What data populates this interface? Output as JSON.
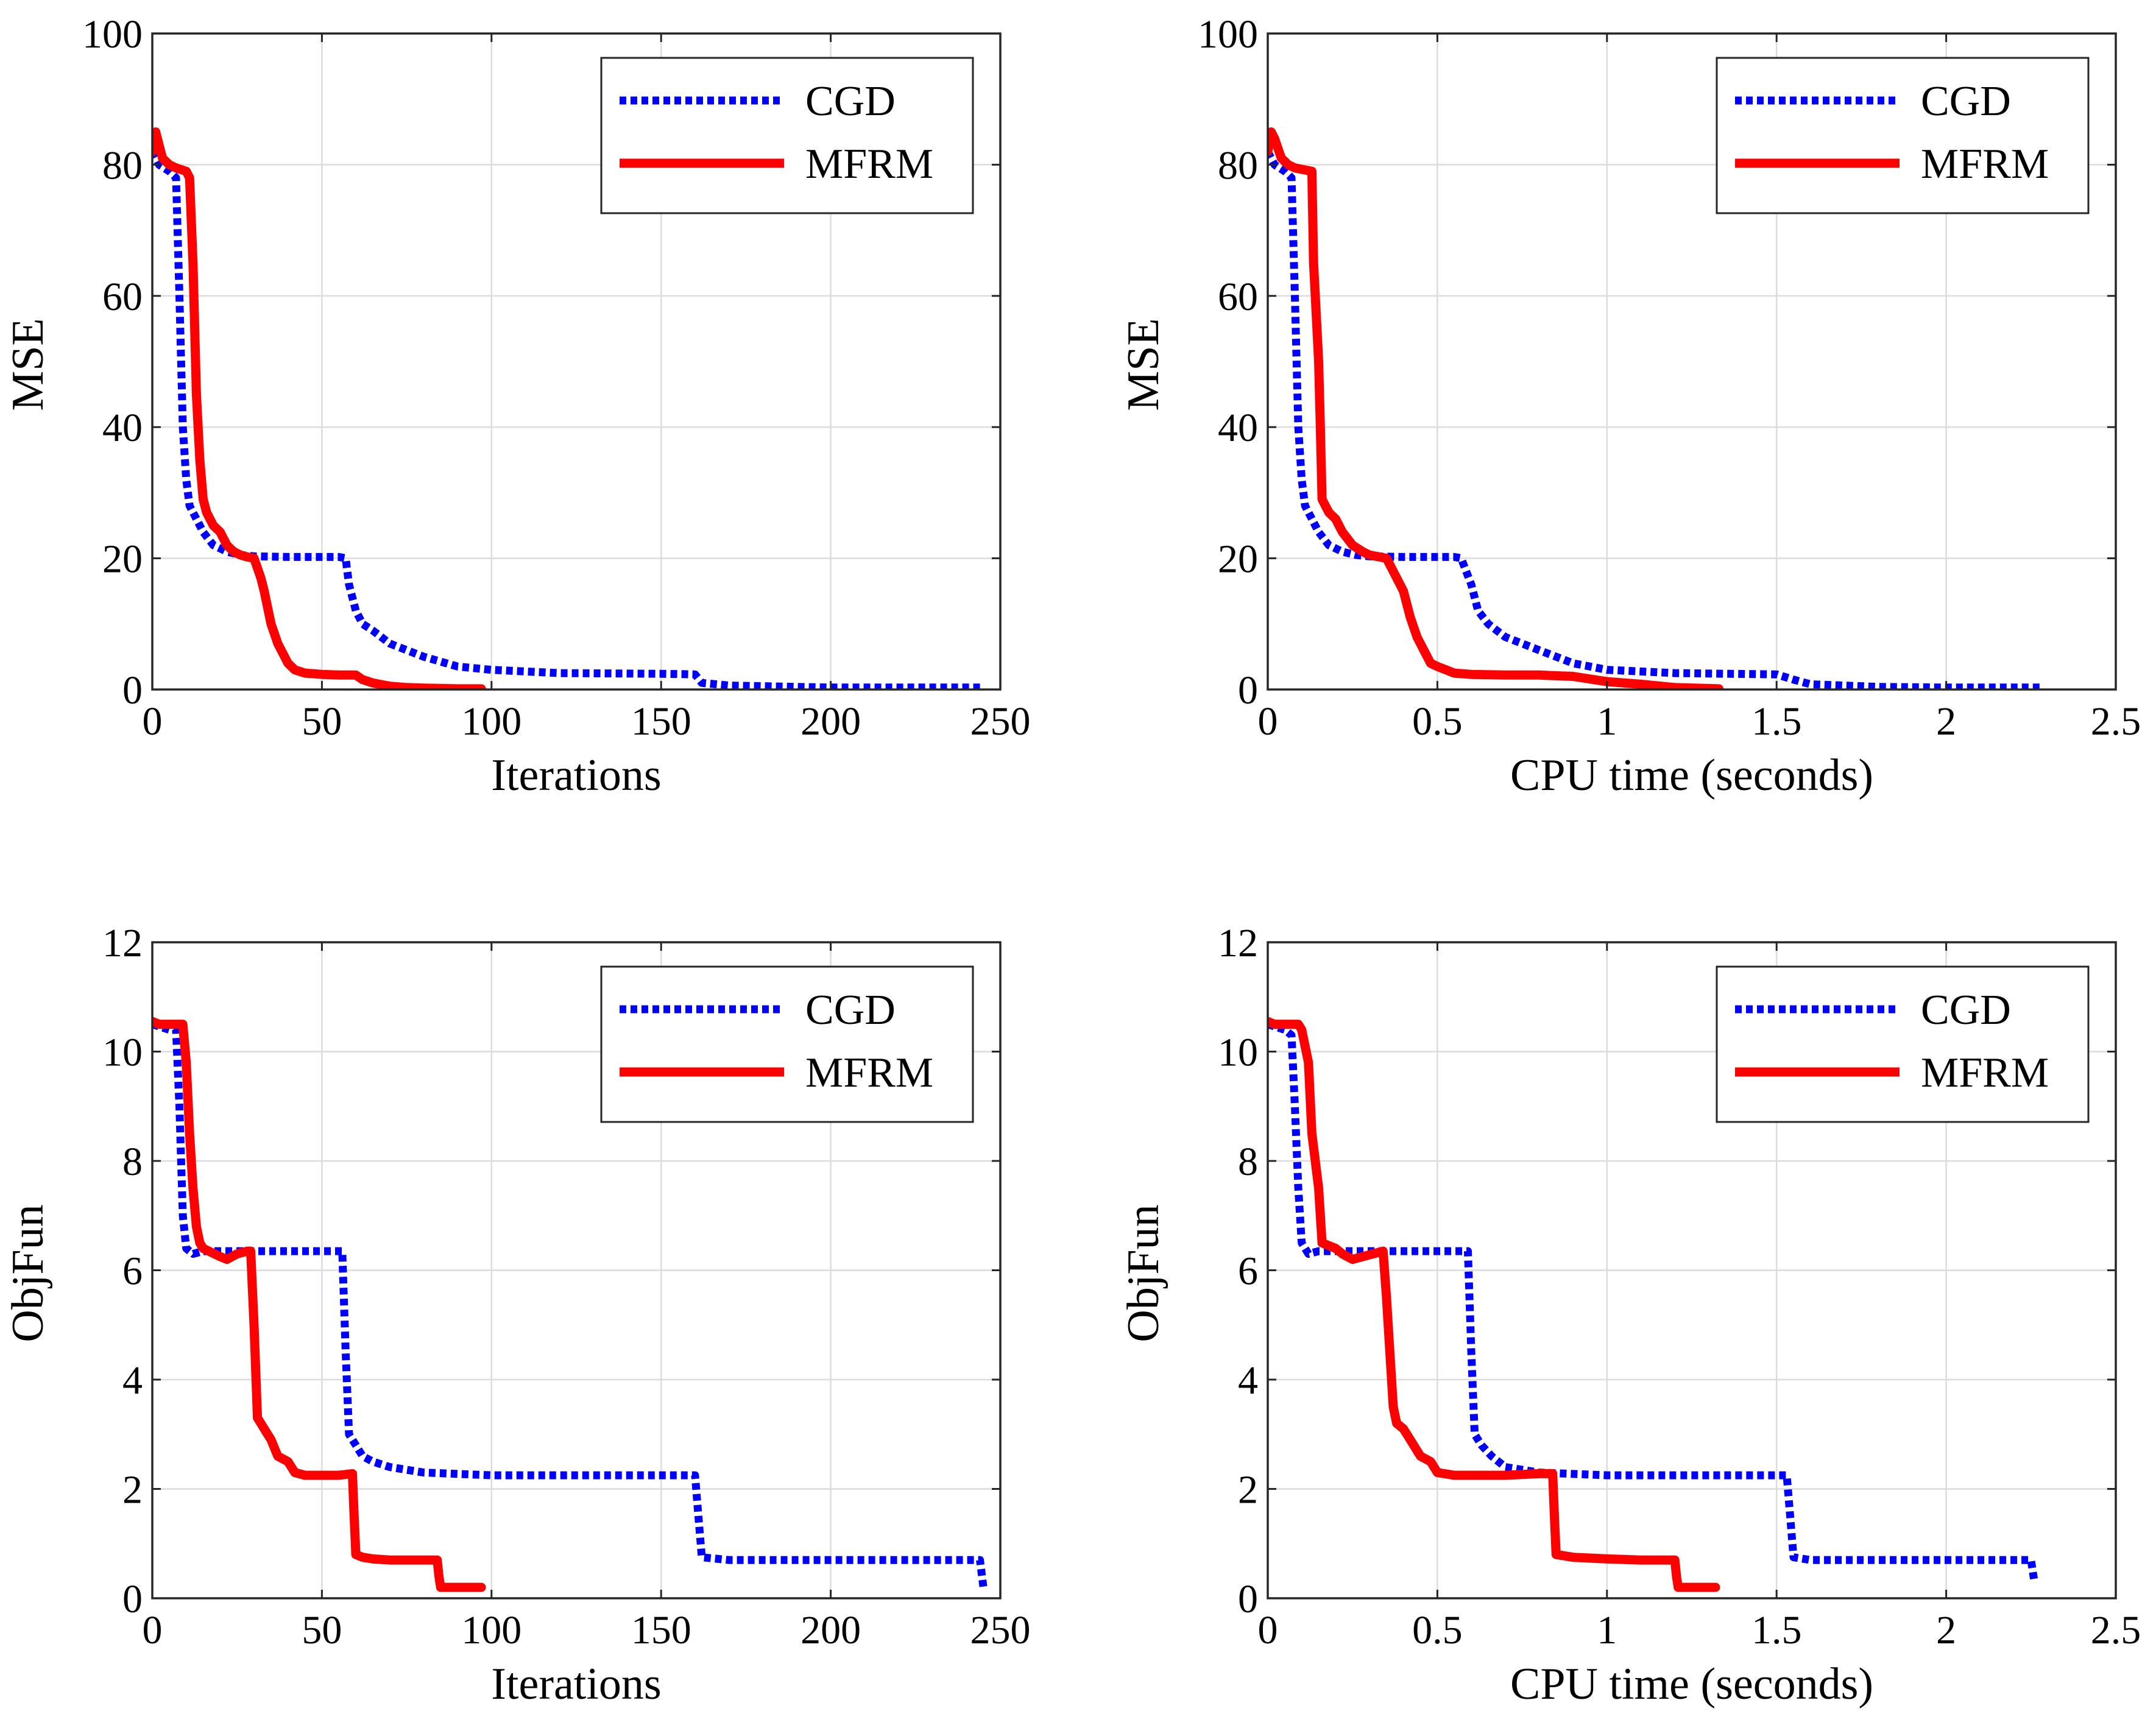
{
  "chart_data": [
    {
      "type": "line",
      "xlabel": "Iterations",
      "ylabel": "MSE",
      "xlim": [
        0,
        250
      ],
      "ylim": [
        0,
        100
      ],
      "xticks": [
        0,
        50,
        100,
        150,
        200,
        250
      ],
      "yticks": [
        0,
        20,
        40,
        60,
        80,
        100
      ],
      "xtick_labels": [
        "0",
        "50",
        "100",
        "150",
        "200",
        "250"
      ],
      "ytick_labels": [
        "0",
        "20",
        "40",
        "60",
        "80",
        "100"
      ],
      "grid": true,
      "legend": "top-right",
      "series": [
        {
          "name": "CGD",
          "color": "#0000ff",
          "style": "dotted",
          "x": [
            0,
            2,
            5,
            7,
            8,
            9,
            10,
            11,
            13,
            15,
            18,
            22,
            26,
            30,
            40,
            50,
            55,
            57,
            58,
            60,
            62,
            65,
            70,
            80,
            90,
            100,
            120,
            150,
            160,
            162,
            170,
            190,
            200,
            220,
            245
          ],
          "y": [
            82,
            80,
            79,
            78,
            60,
            40,
            32,
            28,
            26,
            24,
            22,
            21,
            20.5,
            20.3,
            20.2,
            20.2,
            20.2,
            20,
            16,
            12,
            10,
            9,
            7,
            5,
            3.5,
            3,
            2.5,
            2.4,
            2.3,
            1,
            0.6,
            0.4,
            0.3,
            0.3,
            0.3
          ]
        },
        {
          "name": "MFRM",
          "color": "#ff0000",
          "style": "solid",
          "x": [
            0,
            1,
            2,
            3,
            5,
            7,
            10,
            11,
            12,
            12.5,
            13,
            14,
            15,
            16,
            18,
            20,
            22,
            24,
            26,
            28,
            30,
            32,
            33,
            35,
            37,
            38,
            40,
            42,
            45,
            50,
            55,
            60,
            62,
            65,
            70,
            75,
            80,
            90,
            97
          ],
          "y": [
            82,
            85,
            83,
            81,
            80,
            79.5,
            79,
            78,
            65,
            55,
            45,
            35,
            29,
            27,
            25,
            24,
            22,
            21,
            20.5,
            20.2,
            20,
            17,
            15,
            10,
            7,
            6,
            4,
            3,
            2.5,
            2.3,
            2.2,
            2.2,
            1.5,
            1,
            0.5,
            0.3,
            0.2,
            0.1,
            0.1
          ]
        }
      ]
    },
    {
      "type": "line",
      "xlabel": "CPU time (seconds)",
      "ylabel": "MSE",
      "xlim": [
        0,
        2.5
      ],
      "ylim": [
        0,
        100
      ],
      "xticks": [
        0,
        0.5,
        1,
        1.5,
        2,
        2.5
      ],
      "yticks": [
        0,
        20,
        40,
        60,
        80,
        100
      ],
      "xtick_labels": [
        "0",
        "0.5",
        "1",
        "1.5",
        "2",
        "2.5"
      ],
      "ytick_labels": [
        "0",
        "20",
        "40",
        "60",
        "80",
        "100"
      ],
      "grid": true,
      "legend": "top-right",
      "series": [
        {
          "name": "CGD",
          "color": "#0000ff",
          "style": "dotted",
          "x": [
            0,
            0.02,
            0.05,
            0.07,
            0.08,
            0.09,
            0.1,
            0.11,
            0.13,
            0.15,
            0.18,
            0.22,
            0.26,
            0.3,
            0.4,
            0.5,
            0.55,
            0.57,
            0.6,
            0.62,
            0.65,
            0.7,
            0.8,
            0.9,
            1.0,
            1.2,
            1.5,
            1.55,
            1.6,
            1.8,
            2.0,
            2.2,
            2.28
          ],
          "y": [
            82,
            80,
            79,
            78,
            60,
            40,
            32,
            28,
            26,
            24,
            22,
            21,
            20.5,
            20.3,
            20.2,
            20.2,
            20.2,
            20,
            16,
            12,
            10,
            8,
            6,
            4,
            3,
            2.5,
            2.3,
            1.5,
            0.8,
            0.4,
            0.3,
            0.3,
            0.3
          ]
        },
        {
          "name": "MFRM",
          "color": "#ff0000",
          "style": "solid",
          "x": [
            0,
            0.01,
            0.02,
            0.04,
            0.06,
            0.08,
            0.13,
            0.135,
            0.14,
            0.15,
            0.155,
            0.16,
            0.18,
            0.2,
            0.22,
            0.25,
            0.28,
            0.3,
            0.35,
            0.38,
            0.4,
            0.42,
            0.44,
            0.46,
            0.48,
            0.5,
            0.55,
            0.6,
            0.7,
            0.8,
            0.9,
            1.0,
            1.1,
            1.2,
            1.33
          ],
          "y": [
            82,
            85,
            84,
            81,
            80,
            79.5,
            79,
            65,
            60,
            50,
            40,
            29,
            27,
            26,
            24,
            22,
            21,
            20.5,
            20,
            17,
            15,
            11,
            8,
            6,
            4,
            3.5,
            2.5,
            2.3,
            2.2,
            2.2,
            2,
            1.2,
            0.8,
            0.3,
            0.1
          ]
        }
      ]
    },
    {
      "type": "line",
      "xlabel": "Iterations",
      "ylabel": "ObjFun",
      "xlim": [
        0,
        250
      ],
      "ylim": [
        0,
        12
      ],
      "xticks": [
        0,
        50,
        100,
        150,
        200,
        250
      ],
      "yticks": [
        0,
        2,
        4,
        6,
        8,
        10,
        12
      ],
      "xtick_labels": [
        "0",
        "50",
        "100",
        "150",
        "200",
        "250"
      ],
      "ytick_labels": [
        "0",
        "2",
        "4",
        "6",
        "8",
        "10",
        "12"
      ],
      "grid": true,
      "legend": "top-right",
      "series": [
        {
          "name": "CGD",
          "color": "#0000ff",
          "style": "dotted",
          "x": [
            0,
            5,
            7,
            8,
            9,
            10,
            12,
            15,
            20,
            30,
            40,
            50,
            56,
            57,
            58,
            60,
            62,
            65,
            70,
            80,
            100,
            120,
            150,
            160,
            161,
            162,
            170,
            200,
            230,
            244,
            245
          ],
          "y": [
            10.5,
            10.4,
            10.4,
            9,
            7,
            6.4,
            6.3,
            6.35,
            6.35,
            6.35,
            6.35,
            6.35,
            6.35,
            4.5,
            3,
            2.8,
            2.6,
            2.5,
            2.4,
            2.3,
            2.25,
            2.25,
            2.25,
            2.25,
            1.5,
            0.75,
            0.7,
            0.7,
            0.7,
            0.7,
            0.2
          ]
        },
        {
          "name": "MFRM",
          "color": "#ff0000",
          "style": "solid",
          "x": [
            0,
            2,
            5,
            9,
            10,
            11,
            12,
            13,
            14,
            15,
            20,
            22,
            25,
            28,
            29,
            30,
            31,
            32,
            33,
            35,
            37,
            40,
            42,
            45,
            50,
            55,
            59,
            59.5,
            60,
            62,
            65,
            70,
            80,
            84,
            84.5,
            85,
            90,
            97
          ],
          "y": [
            10.55,
            10.5,
            10.5,
            10.5,
            9.8,
            8.5,
            7.5,
            6.8,
            6.5,
            6.4,
            6.25,
            6.2,
            6.3,
            6.35,
            6.35,
            5,
            3.3,
            3.2,
            3.1,
            2.9,
            2.6,
            2.5,
            2.3,
            2.25,
            2.25,
            2.25,
            2.28,
            1.5,
            0.8,
            0.75,
            0.72,
            0.7,
            0.7,
            0.7,
            0.4,
            0.2,
            0.2,
            0.2
          ]
        }
      ]
    },
    {
      "type": "line",
      "xlabel": "CPU time (seconds)",
      "ylabel": "ObjFun",
      "xlim": [
        0,
        2.5
      ],
      "ylim": [
        0,
        12
      ],
      "xticks": [
        0,
        0.5,
        1,
        1.5,
        2,
        2.5
      ],
      "yticks": [
        0,
        2,
        4,
        6,
        8,
        10,
        12
      ],
      "xtick_labels": [
        "0",
        "0.5",
        "1",
        "1.5",
        "2",
        "2.5"
      ],
      "ytick_labels": [
        "0",
        "2",
        "4",
        "6",
        "8",
        "10",
        "12"
      ],
      "grid": true,
      "legend": "top-right",
      "series": [
        {
          "name": "CGD",
          "color": "#0000ff",
          "style": "dotted",
          "x": [
            0,
            0.05,
            0.07,
            0.08,
            0.09,
            0.1,
            0.12,
            0.15,
            0.2,
            0.3,
            0.4,
            0.5,
            0.59,
            0.6,
            0.61,
            0.63,
            0.66,
            0.7,
            0.8,
            1.0,
            1.2,
            1.5,
            1.53,
            1.54,
            1.55,
            1.6,
            1.8,
            2.0,
            2.2,
            2.25,
            2.26
          ],
          "y": [
            10.5,
            10.4,
            10.3,
            9,
            7.5,
            6.5,
            6.3,
            6.35,
            6.35,
            6.35,
            6.35,
            6.35,
            6.35,
            4.5,
            3,
            2.8,
            2.6,
            2.4,
            2.3,
            2.25,
            2.25,
            2.25,
            2.25,
            1.5,
            0.75,
            0.7,
            0.7,
            0.7,
            0.7,
            0.7,
            0.3
          ]
        },
        {
          "name": "MFRM",
          "color": "#ff0000",
          "style": "solid",
          "x": [
            0,
            0.02,
            0.05,
            0.09,
            0.1,
            0.12,
            0.13,
            0.14,
            0.15,
            0.16,
            0.2,
            0.22,
            0.25,
            0.28,
            0.34,
            0.35,
            0.36,
            0.37,
            0.38,
            0.4,
            0.42,
            0.45,
            0.48,
            0.5,
            0.55,
            0.6,
            0.7,
            0.8,
            0.84,
            0.845,
            0.85,
            0.9,
            1.0,
            1.1,
            1.2,
            1.205,
            1.21,
            1.25,
            1.32
          ],
          "y": [
            10.55,
            10.5,
            10.5,
            10.5,
            10.4,
            9.8,
            8.5,
            8,
            7.5,
            6.5,
            6.4,
            6.3,
            6.2,
            6.25,
            6.35,
            5.5,
            4.5,
            3.5,
            3.2,
            3.1,
            2.9,
            2.6,
            2.5,
            2.3,
            2.25,
            2.25,
            2.25,
            2.28,
            2.28,
            1.5,
            0.8,
            0.75,
            0.72,
            0.7,
            0.7,
            0.4,
            0.2,
            0.2,
            0.2
          ]
        }
      ]
    }
  ]
}
